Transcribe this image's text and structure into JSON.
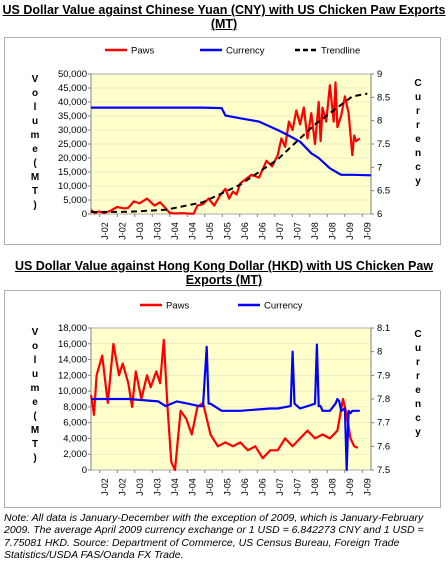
{
  "title_cny": "US Dollar Value against Chinese Yuan (CNY) with US Chicken Paw Exports (MT)",
  "title_hkd": "US Dollar Value against Hong Kong Dollar (HKD) with US Chicken Paw Exports (MT)",
  "note": "Note: All data is January-December with the exception of 2009, which is January-February 2009. The average April 2009 currency exchange or 1 USD = 6.842273 CNY and 1 USD = 7.75081 HKD. Source: Department of Commerce, US Census Bureau, Foreign Trade Statistics/USDA FAS/Oanda FX Trade.",
  "colors": {
    "paws": "#ff0000",
    "currency": "#0000ff",
    "trendline": "#000000",
    "plot_bg": "#ffffcc"
  },
  "chart_data": [
    {
      "type": "line",
      "title": "US Dollar Value against Chinese Yuan (CNY) with US Chicken Paw Exports (MT)",
      "x_ticks": [
        "J-02",
        "J-03",
        "J-04",
        "J-05",
        "J-06",
        "J-07",
        "J-08",
        "J-09"
      ],
      "x_ticks_all": [
        "J-02",
        "J-02",
        "J-03",
        "J-03",
        "J-04",
        "J-04",
        "J-05",
        "J-05",
        "J-06",
        "J-06",
        "J-07",
        "J-07",
        "J-08",
        "J-08",
        "J-09",
        "J-09"
      ],
      "x_range": [
        2002.0,
        2009.5
      ],
      "ylabel": "Volume (MT)",
      "ylabel2": "Currency",
      "ylim": [
        0,
        50000
      ],
      "yticks": [
        "0",
        "5,000",
        "10,000",
        "15,000",
        "20,000",
        "25,000",
        "30,000",
        "35,000",
        "40,000",
        "45,000",
        "50,000"
      ],
      "ylim2": [
        6,
        9
      ],
      "yticks2": [
        "6",
        "6.5",
        "7",
        "7.5",
        "8",
        "8.5",
        "9"
      ],
      "legend": [
        "Paws",
        "Currency",
        "Trendline"
      ],
      "legend_position": "top",
      "series": [
        {
          "name": "Paws",
          "axis": "left",
          "color": "#ff0000",
          "x": [
            2002.0,
            2002.1,
            2002.2,
            2002.35,
            2002.5,
            2002.7,
            2002.9,
            2003.0,
            2003.15,
            2003.3,
            2003.5,
            2003.7,
            2003.85,
            2004.0,
            2004.1,
            2004.2,
            2004.35,
            2004.5,
            2004.65,
            2004.75,
            2004.85,
            2005.0,
            2005.15,
            2005.3,
            2005.45,
            2005.6,
            2005.7,
            2005.8,
            2005.9,
            2006.0,
            2006.15,
            2006.3,
            2006.5,
            2006.7,
            2006.85,
            2007.0,
            2007.1,
            2007.2,
            2007.3,
            2007.4,
            2007.5,
            2007.6,
            2007.7,
            2007.8,
            2007.9,
            2008.0,
            2008.1,
            2008.15,
            2008.2,
            2008.3,
            2008.4,
            2008.5,
            2008.55,
            2008.6,
            2008.7,
            2008.8,
            2008.9,
            2009.0,
            2009.05,
            2009.1,
            2009.2
          ],
          "y": [
            1500,
            300,
            900,
            400,
            1000,
            2500,
            2000,
            2200,
            4500,
            3800,
            5500,
            3000,
            4200,
            2000,
            500,
            200,
            200,
            300,
            100,
            100,
            3000,
            3500,
            5500,
            3000,
            6500,
            9000,
            5500,
            8000,
            7000,
            11000,
            12500,
            14000,
            13000,
            19000,
            17000,
            21000,
            27000,
            24000,
            33000,
            30000,
            37000,
            32000,
            38000,
            27000,
            36000,
            25000,
            40000,
            26000,
            38000,
            33000,
            46000,
            33000,
            47000,
            31000,
            35000,
            42000,
            36000,
            21000,
            28000,
            26000,
            27000
          ]
        },
        {
          "name": "Currency",
          "axis": "right",
          "color": "#0000ff",
          "x": [
            2002.0,
            2003.0,
            2004.0,
            2005.0,
            2005.5,
            2005.6,
            2006.0,
            2006.5,
            2007.0,
            2007.3,
            2007.6,
            2007.9,
            2008.1,
            2008.4,
            2008.7,
            2009.0,
            2009.5
          ],
          "y": [
            8.28,
            8.28,
            8.28,
            8.28,
            8.27,
            8.11,
            8.05,
            7.98,
            7.8,
            7.68,
            7.55,
            7.3,
            7.2,
            6.98,
            6.84,
            6.84,
            6.83
          ]
        },
        {
          "name": "Trendline",
          "axis": "left",
          "style": "dashed",
          "color": "#000000",
          "x": [
            2002.0,
            2003.0,
            2004.0,
            2005.0,
            2006.0,
            2007.0,
            2008.0,
            2009.0,
            2009.4
          ],
          "y": [
            700,
            800,
            1500,
            4200,
            10500,
            19500,
            32000,
            42000,
            43000
          ]
        }
      ]
    },
    {
      "type": "line",
      "title": "US Dollar Value against Hong Kong Dollar (HKD) with US Chicken Paw Exports (MT)",
      "x_ticks_all": [
        "J-02",
        "J-02",
        "J-03",
        "J-03",
        "J-04",
        "J-04",
        "J-05",
        "J-05",
        "J-06",
        "J-06",
        "J-07",
        "J-07",
        "J-08",
        "J-08",
        "J-09",
        "J-09"
      ],
      "x_range": [
        2002.0,
        2009.5
      ],
      "ylabel": "Volume (MT)",
      "ylabel2": "Currency",
      "ylim": [
        0,
        18000
      ],
      "yticks": [
        "0",
        "2,000",
        "4,000",
        "6,000",
        "8,000",
        "10,000",
        "12,000",
        "14,000",
        "16,000",
        "18,000"
      ],
      "ylim2": [
        7.5,
        8.1
      ],
      "yticks2": [
        "7.5",
        "7.6",
        "7.7",
        "7.8",
        "7.9",
        "8",
        "8.1"
      ],
      "legend": [
        "Paws",
        "Currency"
      ],
      "legend_position": "top",
      "series": [
        {
          "name": "Paws",
          "axis": "left",
          "color": "#ff0000",
          "x": [
            2002.0,
            2002.08,
            2002.15,
            2002.3,
            2002.45,
            2002.6,
            2002.75,
            2002.85,
            2003.0,
            2003.1,
            2003.2,
            2003.35,
            2003.5,
            2003.6,
            2003.75,
            2003.85,
            2003.95,
            2004.05,
            2004.15,
            2004.25,
            2004.4,
            2004.55,
            2004.7,
            2004.85,
            2005.0,
            2005.2,
            2005.4,
            2005.6,
            2005.8,
            2006.0,
            2006.2,
            2006.4,
            2006.6,
            2006.8,
            2007.0,
            2007.2,
            2007.4,
            2007.6,
            2007.8,
            2008.0,
            2008.2,
            2008.4,
            2008.6,
            2008.75,
            2008.85,
            2008.95,
            2009.05,
            2009.15
          ],
          "y": [
            9500,
            7000,
            12000,
            14500,
            8500,
            16000,
            12000,
            13500,
            11000,
            8000,
            12500,
            9000,
            12000,
            10500,
            12500,
            11000,
            16500,
            8000,
            1000,
            0,
            7500,
            6500,
            4500,
            8000,
            8500,
            4500,
            3000,
            3500,
            3000,
            3500,
            2500,
            3000,
            1500,
            2500,
            2500,
            4000,
            3000,
            4000,
            5000,
            4000,
            4500,
            4000,
            5000,
            9000,
            7000,
            4000,
            3000,
            2800
          ]
        },
        {
          "name": "Currency",
          "axis": "right",
          "color": "#0000ff",
          "x": [
            2002.0,
            2003.0,
            2003.8,
            2004.0,
            2004.3,
            2004.6,
            2004.9,
            2005.0,
            2005.1,
            2005.15,
            2005.2,
            2005.5,
            2005.9,
            2006.0,
            2006.8,
            2007.0,
            2007.35,
            2007.4,
            2007.45,
            2007.6,
            2008.0,
            2008.05,
            2008.1,
            2008.15,
            2008.2,
            2008.4,
            2008.55,
            2008.6,
            2008.65,
            2008.7,
            2008.8,
            2008.85,
            2008.9,
            2008.95,
            2009.0,
            2009.2
          ],
          "y": [
            7.8,
            7.8,
            7.79,
            7.77,
            7.79,
            7.78,
            7.77,
            7.77,
            8.02,
            7.78,
            7.78,
            7.75,
            7.75,
            7.75,
            7.76,
            7.76,
            7.77,
            8.0,
            7.78,
            7.76,
            7.78,
            8.03,
            7.77,
            7.77,
            7.75,
            7.75,
            7.78,
            7.8,
            7.79,
            7.75,
            7.76,
            7.5,
            7.75,
            7.74,
            7.75,
            7.75
          ]
        }
      ]
    }
  ]
}
